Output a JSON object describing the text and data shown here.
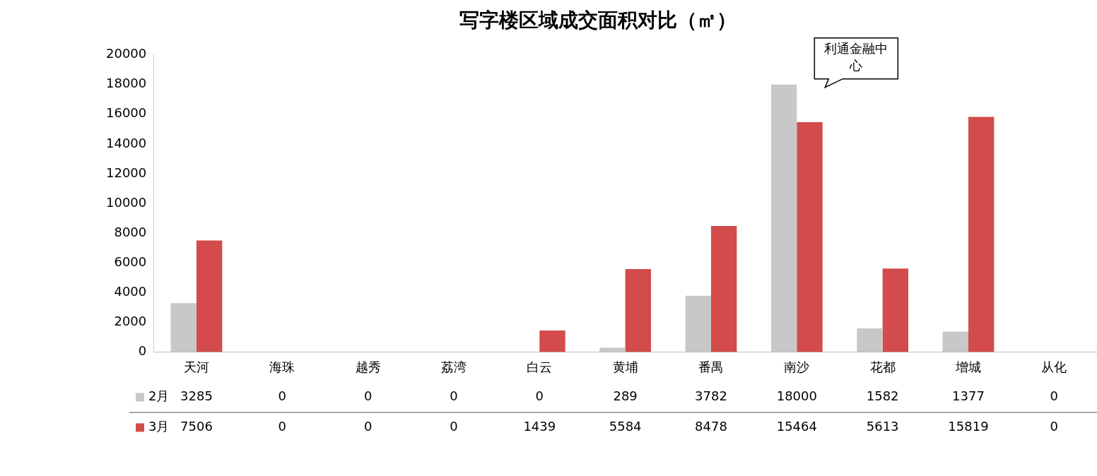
{
  "chart_data": {
    "type": "bar",
    "title": "写字楼区域成交面积对比（㎡）",
    "categories": [
      "天河",
      "海珠",
      "越秀",
      "荔湾",
      "白云",
      "黄埔",
      "番禺",
      "南沙",
      "花都",
      "增城",
      "从化"
    ],
    "series": [
      {
        "name": "2月",
        "color": "#c8c8c8",
        "values": [
          3285,
          0,
          0,
          0,
          0,
          289,
          3782,
          18000,
          1582,
          1377,
          0
        ]
      },
      {
        "name": "3月",
        "color": "#d34b4b",
        "values": [
          7506,
          0,
          0,
          0,
          1439,
          5584,
          8478,
          15464,
          5613,
          15819,
          0
        ]
      }
    ],
    "ylim": [
      0,
      20000
    ],
    "yticks": [
      0,
      2000,
      4000,
      6000,
      8000,
      10000,
      12000,
      14000,
      16000,
      18000,
      20000
    ],
    "grid": false,
    "legend": "bottom",
    "data_labels": true,
    "annotations": [
      {
        "text": "利通金融中心",
        "x": "南沙",
        "y": 18000
      }
    ]
  }
}
